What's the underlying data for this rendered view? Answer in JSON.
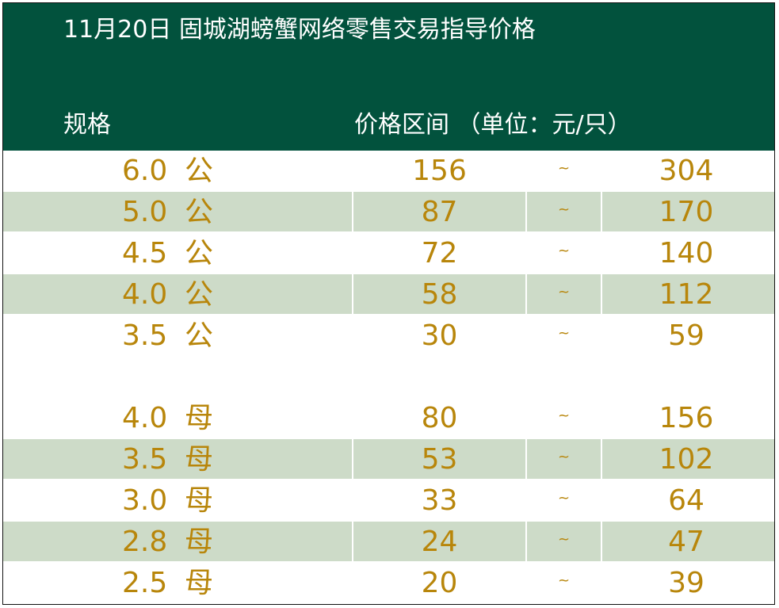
{
  "header": {
    "title": "11月20日 固城湖螃蟹网络零售交易指导价格",
    "col_spec": "规格",
    "col_price": "价格区间 （单位：元/只）"
  },
  "rows": [
    {
      "spec": "6.0",
      "sex": "公",
      "low": "156",
      "sep": "~",
      "high": "304"
    },
    {
      "spec": "5.0",
      "sex": "公",
      "low": "87",
      "sep": "~",
      "high": "170"
    },
    {
      "spec": "4.5",
      "sex": "公",
      "low": "72",
      "sep": "~",
      "high": "140"
    },
    {
      "spec": "4.0",
      "sex": "公",
      "low": "58",
      "sep": "~",
      "high": "112"
    },
    {
      "spec": "3.5",
      "sex": "公",
      "low": "30",
      "sep": "~",
      "high": "59"
    },
    {
      "spec": "4.0",
      "sex": "母",
      "low": "80",
      "sep": "~",
      "high": "156"
    },
    {
      "spec": "3.5",
      "sex": "母",
      "low": "53",
      "sep": "~",
      "high": "102"
    },
    {
      "spec": "3.0",
      "sex": "母",
      "low": "33",
      "sep": "~",
      "high": "64"
    },
    {
      "spec": "2.8",
      "sex": "母",
      "low": "24",
      "sep": "~",
      "high": "47"
    },
    {
      "spec": "2.5",
      "sex": "母",
      "low": "20",
      "sep": "~",
      "high": "39"
    }
  ],
  "colors": {
    "header_bg": "#02523d",
    "header_text": "#ffffff",
    "value_text": "#b8860b",
    "stripe": "#cddbc8"
  }
}
